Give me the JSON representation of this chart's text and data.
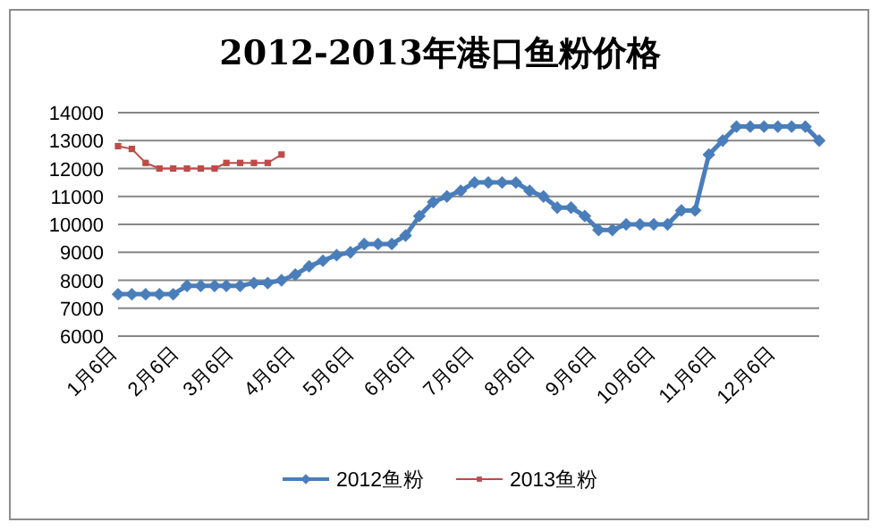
{
  "chart_data": {
    "type": "line",
    "title": "2012-2013年港口鱼粉价格",
    "x": [
      "--01-06",
      "--01-13",
      "--01-20",
      "--01-27",
      "--02-03",
      "--02-10",
      "--02-17",
      "--02-24",
      "--03-02",
      "--03-09",
      "--03-16",
      "--03-23",
      "--03-30",
      "--04-06",
      "--04-13",
      "--04-20",
      "--04-27",
      "--05-04",
      "--05-11",
      "--05-18",
      "--05-25",
      "--06-01",
      "--06-08",
      "--06-15",
      "--06-22",
      "--06-29",
      "--07-06",
      "--07-13",
      "--07-20",
      "--07-27",
      "--08-03",
      "--08-10",
      "--08-17",
      "--08-24",
      "--08-31",
      "--09-07",
      "--09-14",
      "--09-21",
      "--09-28",
      "--10-05",
      "--10-12",
      "--10-19",
      "--10-26",
      "--11-02",
      "--11-09",
      "--11-16",
      "--11-23",
      "--11-30",
      "--12-07",
      "--12-14",
      "--12-21",
      "--12-28"
    ],
    "series": [
      {
        "name": "2012鱼粉",
        "color": "#4a7ebb",
        "marker": "diamond",
        "values": [
          7500,
          7500,
          7500,
          7500,
          7500,
          7800,
          7800,
          7800,
          7800,
          7800,
          7900,
          7900,
          8000,
          8200,
          8500,
          8700,
          8900,
          9000,
          9300,
          9300,
          9300,
          9600,
          10300,
          10800,
          11000,
          11200,
          11500,
          11500,
          11500,
          11500,
          11200,
          11000,
          10600,
          10600,
          10300,
          9800,
          9800,
          10000,
          10000,
          10000,
          10000,
          10500,
          10500,
          12500,
          13000,
          13500,
          13500,
          13500,
          13500,
          13500,
          13500,
          13000
        ]
      },
      {
        "name": "2013鱼粉",
        "color": "#be4b48",
        "marker": "square",
        "x": [
          "--01-06",
          "--01-13",
          "--01-20",
          "--01-27",
          "--02-03",
          "--02-10",
          "--02-17",
          "--02-24",
          "--03-02",
          "--03-09",
          "--03-16",
          "--03-23",
          "--03-30"
        ],
        "values": [
          12800,
          12700,
          12200,
          12000,
          12000,
          12000,
          12000,
          12000,
          12200,
          12200,
          12200,
          12200,
          12500
        ]
      }
    ],
    "xlim": [
      "--01-06",
      "--12-28"
    ],
    "xticks": [
      {
        "value": "--01-06",
        "label": "1月6日"
      },
      {
        "value": "--02-06",
        "label": "2月6日"
      },
      {
        "value": "--03-06",
        "label": "3月6日"
      },
      {
        "value": "--04-06",
        "label": "4月6日"
      },
      {
        "value": "--05-06",
        "label": "5月6日"
      },
      {
        "value": "--06-06",
        "label": "6月6日"
      },
      {
        "value": "--07-06",
        "label": "7月6日"
      },
      {
        "value": "--08-06",
        "label": "8月6日"
      },
      {
        "value": "--09-06",
        "label": "9月6日"
      },
      {
        "value": "--10-06",
        "label": "10月6日"
      },
      {
        "value": "--11-06",
        "label": "11月6日"
      },
      {
        "value": "--12-06",
        "label": "12月6日"
      }
    ],
    "ylim": [
      6000,
      14000
    ],
    "yticks": [
      6000,
      7000,
      8000,
      9000,
      10000,
      11000,
      12000,
      13000,
      14000
    ],
    "grid": "y",
    "legend": "bottom"
  }
}
